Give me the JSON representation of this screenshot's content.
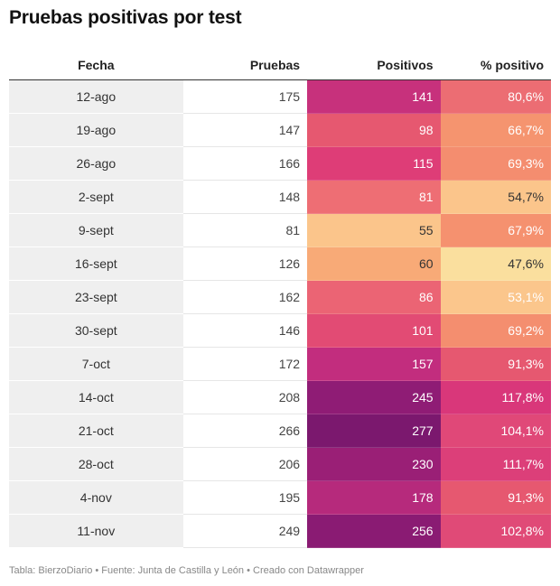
{
  "header": {
    "title": "Pruebas positivas por test"
  },
  "footer": {
    "text": "Tabla: BierzoDiario • Fuente: Junta de Castilla y León • Creado con Datawrapper"
  },
  "chart_data": {
    "type": "table",
    "title": "Pruebas positivas por test",
    "columns": [
      "Fecha",
      "Pruebas",
      "Positivos",
      "% positivo"
    ],
    "rows": [
      {
        "fecha": "12-ago",
        "pruebas": "175",
        "positivos": "141",
        "pct": "80,6%",
        "pos_color": "#c7317c",
        "pct_color": "#ec6d73"
      },
      {
        "fecha": "19-ago",
        "pruebas": "147",
        "positivos": "98",
        "pct": "66,7%",
        "pos_color": "#e65870",
        "pct_color": "#f5946f"
      },
      {
        "fecha": "26-ago",
        "pruebas": "166",
        "positivos": "115",
        "pct": "69,3%",
        "pos_color": "#de3d77",
        "pct_color": "#f48d6f"
      },
      {
        "fecha": "2-sept",
        "pruebas": "148",
        "positivos": "81",
        "pct": "54,7%",
        "pos_color": "#ee6e74",
        "pct_color": "#fbc58b"
      },
      {
        "fecha": "9-sept",
        "pruebas": "81",
        "positivos": "55",
        "pct": "67,9%",
        "pos_color": "#fbc58b",
        "pct_color": "#f5916f"
      },
      {
        "fecha": "16-sept",
        "pruebas": "126",
        "positivos": "60",
        "pct": "47,6%",
        "pos_color": "#f8aa77",
        "pct_color": "#fadf9e"
      },
      {
        "fecha": "23-sept",
        "pruebas": "162",
        "positivos": "86",
        "pct": "53,1%",
        "pos_color": "#eb6474",
        "pct_color": "#fbc68c"
      },
      {
        "fecha": "30-sept",
        "pruebas": "146",
        "positivos": "101",
        "pct": "69,2%",
        "pos_color": "#e24b74",
        "pct_color": "#f48e6f"
      },
      {
        "fecha": "7-oct",
        "pruebas": "172",
        "positivos": "157",
        "pct": "91,3%",
        "pos_color": "#c22d7e",
        "pct_color": "#e65870"
      },
      {
        "fecha": "14-oct",
        "pruebas": "208",
        "positivos": "245",
        "pct": "117,8%",
        "pos_color": "#8f1c75",
        "pct_color": "#d9377a"
      },
      {
        "fecha": "21-oct",
        "pruebas": "266",
        "positivos": "277",
        "pct": "104,1%",
        "pos_color": "#7b186e",
        "pct_color": "#e04878"
      },
      {
        "fecha": "28-oct",
        "pruebas": "206",
        "positivos": "230",
        "pct": "111,7%",
        "pos_color": "#9a1f76",
        "pct_color": "#dc3f79"
      },
      {
        "fecha": "4-nov",
        "pruebas": "195",
        "positivos": "178",
        "pct": "91,3%",
        "pos_color": "#b62a7c",
        "pct_color": "#e65870"
      },
      {
        "fecha": "11-nov",
        "pruebas": "249",
        "positivos": "256",
        "pct": "102,8%",
        "pos_color": "#8a1b73",
        "pct_color": "#e04a77"
      }
    ]
  }
}
